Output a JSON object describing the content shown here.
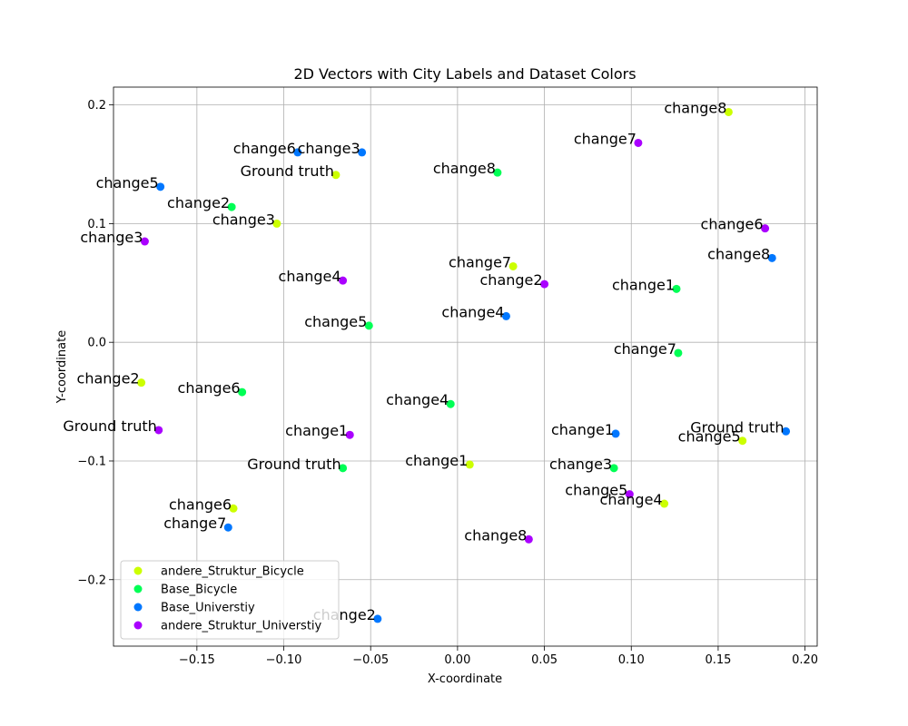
{
  "chart_data": {
    "type": "scatter",
    "title": "2D Vectors with City Labels and Dataset Colors",
    "xlabel": "X-coordinate",
    "ylabel": "Y-coordinate",
    "xlim": [
      -0.198,
      0.207
    ],
    "ylim": [
      -0.256,
      0.215
    ],
    "xticks": [
      -0.15,
      -0.1,
      -0.05,
      0.0,
      0.05,
      0.1,
      0.15,
      0.2
    ],
    "xtick_labels": [
      "−0.15",
      "−0.10",
      "−0.05",
      "0.00",
      "0.05",
      "0.10",
      "0.15",
      "0.20"
    ],
    "yticks": [
      -0.2,
      -0.1,
      0.0,
      0.1,
      0.2
    ],
    "ytick_labels": [
      "−0.2",
      "−0.1",
      "0.0",
      "0.1",
      "0.2"
    ],
    "grid": true,
    "legend_position": "lower-left",
    "series": [
      {
        "name": "andere_Struktur_Bicycle",
        "color": "#ccff00",
        "points": [
          {
            "label": "change8",
            "x": 0.156,
            "y": 0.194
          },
          {
            "label": "Ground truth",
            "x": -0.07,
            "y": 0.141
          },
          {
            "label": "change3",
            "x": -0.104,
            "y": 0.1
          },
          {
            "label": "change7",
            "x": 0.032,
            "y": 0.064
          },
          {
            "label": "change2",
            "x": -0.182,
            "y": -0.034
          },
          {
            "label": "change5",
            "x": 0.164,
            "y": -0.083
          },
          {
            "label": "change1",
            "x": 0.007,
            "y": -0.103
          },
          {
            "label": "change6",
            "x": -0.129,
            "y": -0.14
          },
          {
            "label": "change4",
            "x": 0.119,
            "y": -0.136
          }
        ]
      },
      {
        "name": "Base_Bicycle",
        "color": "#00ff55",
        "points": [
          {
            "label": "change8",
            "x": 0.023,
            "y": 0.143
          },
          {
            "label": "change2",
            "x": -0.13,
            "y": 0.114
          },
          {
            "label": "change1",
            "x": 0.126,
            "y": 0.045
          },
          {
            "label": "change5",
            "x": -0.051,
            "y": 0.014
          },
          {
            "label": "change7",
            "x": 0.127,
            "y": -0.009
          },
          {
            "label": "change6",
            "x": -0.124,
            "y": -0.042
          },
          {
            "label": "change4",
            "x": -0.004,
            "y": -0.052
          },
          {
            "label": "Ground truth",
            "x": -0.066,
            "y": -0.106
          },
          {
            "label": "change3",
            "x": 0.09,
            "y": -0.106
          }
        ]
      },
      {
        "name": "Base_Universtiy",
        "color": "#0077ff",
        "points": [
          {
            "label": "change6",
            "x": -0.092,
            "y": 0.16
          },
          {
            "label": "change3",
            "x": -0.055,
            "y": 0.16
          },
          {
            "label": "change5",
            "x": -0.171,
            "y": 0.131
          },
          {
            "label": "change8",
            "x": 0.181,
            "y": 0.071
          },
          {
            "label": "change4",
            "x": 0.028,
            "y": 0.022
          },
          {
            "label": "change1",
            "x": 0.091,
            "y": -0.077
          },
          {
            "label": "Ground truth",
            "x": 0.189,
            "y": -0.075
          },
          {
            "label": "change7",
            "x": -0.132,
            "y": -0.156
          },
          {
            "label": "change2",
            "x": -0.046,
            "y": -0.233
          }
        ]
      },
      {
        "name": "andere_Struktur_Universtiy",
        "color": "#aa00ff",
        "points": [
          {
            "label": "change7",
            "x": 0.104,
            "y": 0.168
          },
          {
            "label": "change6",
            "x": 0.177,
            "y": 0.096
          },
          {
            "label": "change3",
            "x": -0.18,
            "y": 0.085
          },
          {
            "label": "change4",
            "x": -0.066,
            "y": 0.052
          },
          {
            "label": "change2",
            "x": 0.05,
            "y": 0.049
          },
          {
            "label": "Ground truth",
            "x": -0.172,
            "y": -0.074
          },
          {
            "label": "change1",
            "x": -0.062,
            "y": -0.078
          },
          {
            "label": "change5",
            "x": 0.099,
            "y": -0.128
          },
          {
            "label": "change8",
            "x": 0.041,
            "y": -0.166
          }
        ]
      }
    ]
  }
}
